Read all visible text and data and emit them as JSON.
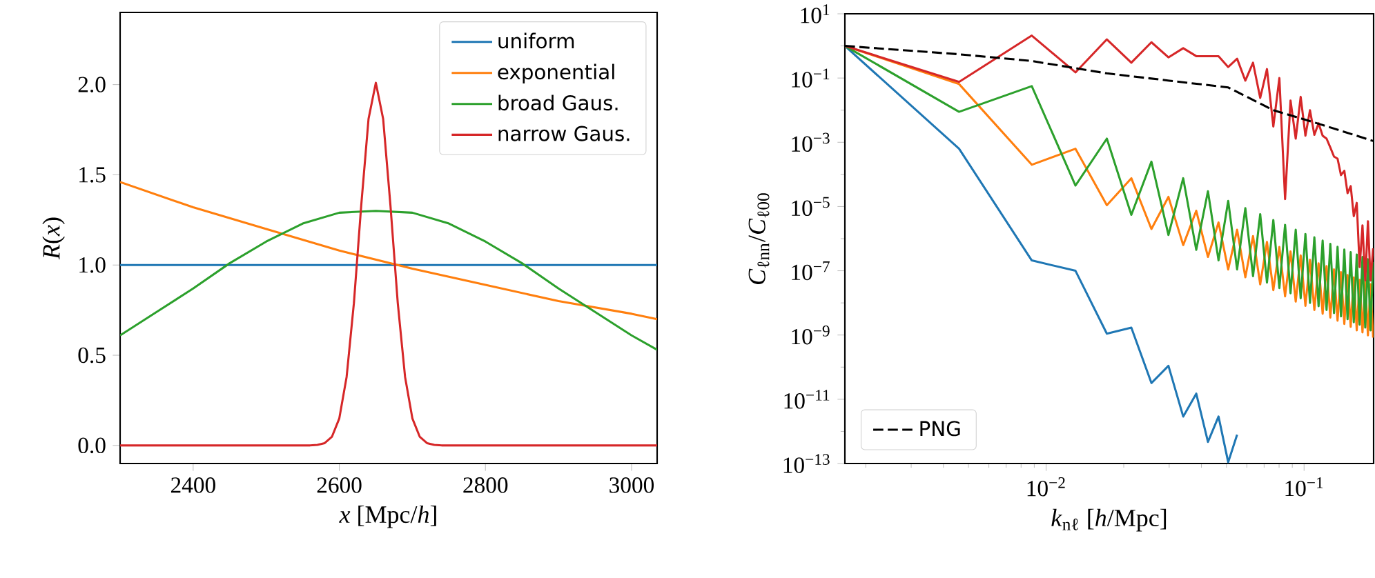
{
  "chart_data": [
    {
      "type": "line",
      "xlabel": "*x* [Mpc/*h*]",
      "ylabel": "*R*(*x*)",
      "xlim": [
        2300,
        3035
      ],
      "ylim": [
        -0.1,
        2.4
      ],
      "xticks": [
        2400,
        2600,
        2800,
        3000
      ],
      "yticks": [
        {
          "value": 0,
          "label": "0.0"
        },
        {
          "value": 0.5,
          "label": "0.5"
        },
        {
          "value": 1,
          "label": "1.0"
        },
        {
          "value": 1.5,
          "label": "1.5"
        },
        {
          "value": 2,
          "label": "2.0"
        }
      ],
      "legend": "top right",
      "series": [
        {
          "name": "uniform",
          "color": "#1f77b4",
          "x": [
            2300,
            3035
          ],
          "values": [
            1,
            1
          ]
        },
        {
          "name": "exponential",
          "color": "#ff7f0e",
          "x": [
            2300,
            2400,
            2500,
            2600,
            2700,
            2800,
            2900,
            3000,
            3035
          ],
          "values": [
            1.46,
            1.32,
            1.2,
            1.08,
            0.98,
            0.89,
            0.8,
            0.73,
            0.7
          ]
        },
        {
          "name": "broad Gaus.",
          "color": "#2ca02c",
          "x": [
            2300,
            2350,
            2400,
            2450,
            2500,
            2550,
            2600,
            2650,
            2700,
            2750,
            2800,
            2850,
            2900,
            2950,
            3000,
            3035
          ],
          "values": [
            0.61,
            0.74,
            0.87,
            1.01,
            1.13,
            1.23,
            1.29,
            1.3,
            1.29,
            1.23,
            1.13,
            1.01,
            0.87,
            0.74,
            0.61,
            0.53
          ]
        },
        {
          "name": "narrow Gaus.",
          "color": "#d62728",
          "x": [
            2300,
            2560,
            2570,
            2580,
            2590,
            2600,
            2610,
            2620,
            2630,
            2640,
            2650,
            2660,
            2670,
            2680,
            2690,
            2700,
            2710,
            2720,
            2730,
            2740,
            3035
          ],
          "values": [
            0,
            0,
            0.003,
            0.013,
            0.049,
            0.15,
            0.38,
            0.79,
            1.33,
            1.81,
            2.01,
            1.81,
            1.33,
            0.79,
            0.38,
            0.15,
            0.049,
            0.013,
            0.003,
            0,
            0
          ]
        }
      ]
    },
    {
      "type": "line",
      "log": "xy",
      "xlabel": "*k*$_{nℓ}$ [*h*/Mpc]",
      "ylabel": "*C*$_{ℓnn}$/*C*$_{ℓ00}$",
      "xlim": [
        0.00166,
        0.186
      ],
      "ylim": [
        1e-13,
        10
      ],
      "xticks": [
        {
          "value": 0.002,
          "label": null
        },
        {
          "value": 0.003,
          "label": null
        },
        {
          "value": 0.004,
          "label": null
        },
        {
          "value": 0.005,
          "label": null
        },
        {
          "value": 0.006,
          "label": null
        },
        {
          "value": 0.007,
          "label": null
        },
        {
          "value": 0.008,
          "label": null
        },
        {
          "value": 0.009,
          "label": null
        },
        {
          "value": 0.01,
          "label": "10$^{−2}$"
        },
        {
          "value": 0.02,
          "label": null
        },
        {
          "value": 0.03,
          "label": null
        },
        {
          "value": 0.04,
          "label": null
        },
        {
          "value": 0.05,
          "label": null
        },
        {
          "value": 0.06,
          "label": null
        },
        {
          "value": 0.07,
          "label": null
        },
        {
          "value": 0.08,
          "label": null
        },
        {
          "value": 0.09,
          "label": null
        },
        {
          "value": 0.1,
          "label": "10$^{−1}$"
        }
      ],
      "yticks": [
        {
          "value": 10,
          "label": "10$^{1}$"
        },
        {
          "value": 1,
          "label": null
        },
        {
          "value": 0.1,
          "label": "10$^{−1}$"
        },
        {
          "value": 0.01,
          "label": null
        },
        {
          "value": 0.001,
          "label": "10$^{−3}$"
        },
        {
          "value": 0.0001,
          "label": null
        },
        {
          "value": 1e-05,
          "label": "10$^{−5}$"
        },
        {
          "value": 1e-06,
          "label": null
        },
        {
          "value": 1e-07,
          "label": "10$^{−7}$"
        },
        {
          "value": 1e-08,
          "label": null
        },
        {
          "value": 1e-09,
          "label": "10$^{−9}$"
        },
        {
          "value": 1e-10,
          "label": null
        },
        {
          "value": 1e-11,
          "label": "10$^{−11}$"
        },
        {
          "value": 1e-12,
          "label": null
        },
        {
          "value": 1e-13,
          "label": "10$^{−13}$"
        }
      ],
      "legend": "bottom left",
      "x": [
        0.00166,
        0.0046,
        0.0088,
        0.013,
        0.0172,
        0.0214,
        0.0256,
        0.0298,
        0.034,
        0.0382,
        0.0424,
        0.0466,
        0.0508,
        0.055,
        0.0592,
        0.0634,
        0.0676,
        0.0718,
        0.076,
        0.0802,
        0.0844,
        0.0886,
        0.0928,
        0.097,
        0.1012,
        0.1054,
        0.1096,
        0.1138,
        0.118,
        0.1222,
        0.1264,
        0.1306,
        0.1348,
        0.139,
        0.1432,
        0.1474,
        0.1516,
        0.1558,
        0.16,
        0.1642,
        0.1684,
        0.1726,
        0.1768,
        0.181,
        0.1852
      ],
      "series": [
        {
          "color": "#1f77b4",
          "values": [
            1,
            0.00063,
            2.1e-07,
            1e-07,
            1.1e-09,
            1.7e-09,
            3.2e-11,
            1.1e-10,
            2.9e-12,
            1.5e-11,
            4.7e-13,
            2.9e-12,
            1.1e-13,
            7.9e-13,
            null,
            null,
            null,
            null,
            null,
            null,
            null,
            null,
            null,
            null,
            null,
            null,
            null,
            null,
            null,
            null,
            null,
            null,
            null,
            null,
            null,
            null,
            null,
            null,
            null,
            null,
            null,
            null,
            null,
            null,
            null
          ]
        },
        {
          "color": "#ff7f0e",
          "values": [
            1,
            0.065,
            0.0002,
            0.00063,
            1.1e-05,
            7.6e-05,
            2e-06,
            2e-05,
            6.3e-07,
            7.4e-06,
            2.7e-07,
            3.2e-06,
            1.1e-07,
            1.9e-06,
            6.3e-08,
            1.2e-06,
            3.8e-08,
            7.9e-07,
            2.5e-08,
            5.5e-07,
            1.6e-08,
            4e-07,
            1.1e-08,
            3e-07,
            8.1e-09,
            2.2e-07,
            6e-09,
            1.7e-07,
            4.6e-09,
            1.4e-07,
            3.5e-09,
            1.1e-07,
            2.8e-09,
            9.1e-08,
            2.2e-09,
            7.4e-08,
            1.8e-09,
            6.2e-08,
            1.4e-09,
            5.2e-08,
            1.2e-09,
            4.5e-08,
            9.8e-10,
            3.8e-08,
            8.3e-10
          ]
        },
        {
          "color": "#2ca02c",
          "values": [
            1,
            0.0089,
            0.056,
            4.5e-05,
            0.0013,
            5.5e-06,
            0.00025,
            1.3e-06,
            7.6e-05,
            4.5e-07,
            3e-05,
            2.1e-07,
            1.5e-05,
            1.1e-07,
            8.9e-06,
            6.8e-08,
            5.8e-06,
            4.3e-08,
            3.8e-06,
            2.9e-08,
            2.7e-06,
            2e-08,
            1.9e-06,
            1.4e-08,
            1.4e-06,
            1e-08,
            1.1e-06,
            7.9e-09,
            8.7e-07,
            6e-09,
            6.9e-07,
            4.8e-09,
            5.6e-07,
            3.8e-09,
            4.6e-07,
            3.1e-09,
            3.8e-07,
            2.5e-09,
            3.2e-07,
            2.1e-09,
            2.7e-07,
            1.7e-09,
            2.3e-07,
            1.4e-09,
            1.9e-07
          ]
        },
        {
          "color": "#d62728",
          "values": [
            1,
            0.076,
            2.1,
            0.15,
            1.6,
            0.3,
            1.3,
            0.44,
            0.85,
            0.48,
            0.48,
            0.48,
            0.22,
            0.4,
            0.083,
            0.3,
            0.024,
            0.19,
            0.0031,
            0.1,
            1.7e-05,
            0.02,
            0.0013,
            0.026,
            0.0016,
            0.01,
            0.0017,
            0.0039,
            0.0016,
            0.0013,
            0.00069,
            0.00036,
            0.00031,
            9.5e-05,
            0.00013,
            2.6e-05,
            4.3e-05,
            5e-06,
            1.3e-05,
            1.3e-07,
            2.6e-06,
            5e-08,
            3.5e-06,
            5e-08,
            5e-07
          ]
        },
        {
          "name": "PNG",
          "color": "#000000",
          "line_style": "dashed",
          "x": [
            0.00166,
            0.0046,
            0.0088,
            0.0172,
            0.03,
            0.0508,
            0.076,
            0.116,
            0.1852
          ],
          "values": [
            1,
            0.55,
            0.34,
            0.14,
            0.083,
            0.051,
            0.01,
            0.0036,
            0.0011
          ]
        }
      ]
    }
  ]
}
